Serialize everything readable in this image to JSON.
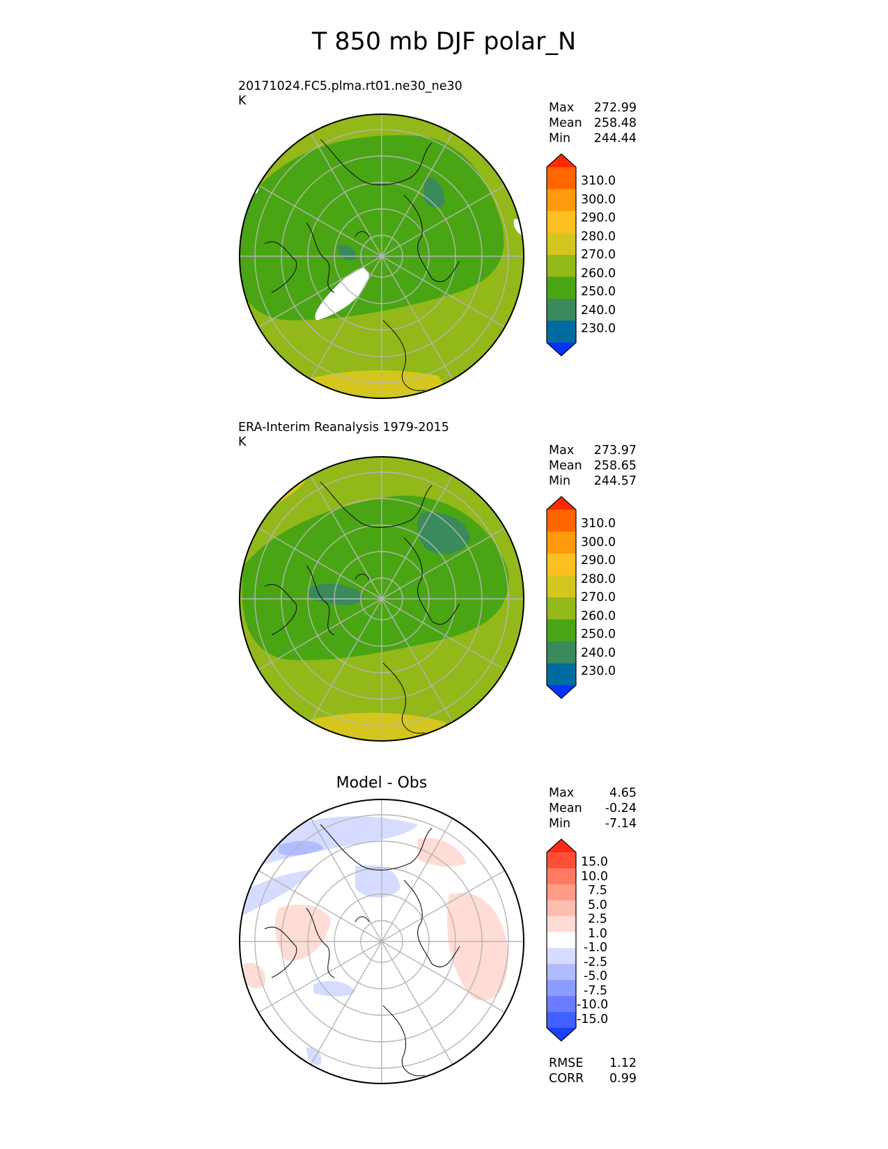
{
  "figure_title": "T 850 mb DJF polar_N",
  "panels": [
    {
      "id": "model",
      "title_line1": "20171024.FC5.plma.rt01.ne30_ne30",
      "title_line2": "K",
      "stats": [
        {
          "label": "Max",
          "value": "272.99"
        },
        {
          "label": "Mean",
          "value": "258.48"
        },
        {
          "label": "Min",
          "value": "244.44"
        }
      ]
    },
    {
      "id": "obs",
      "title_line1": "ERA-Interim Reanalysis 1979-2015",
      "title_line2": "K",
      "stats": [
        {
          "label": "Max",
          "value": "273.97"
        },
        {
          "label": "Mean",
          "value": "258.65"
        },
        {
          "label": "Min",
          "value": "244.57"
        }
      ]
    },
    {
      "id": "diff",
      "title_center": "Model - Obs",
      "stats": [
        {
          "label": "Max",
          "value": "4.65"
        },
        {
          "label": "Mean",
          "value": "-0.24"
        },
        {
          "label": "Min",
          "value": "-7.14"
        }
      ],
      "footer_stats": [
        {
          "label": "RMSE",
          "value": "1.12"
        },
        {
          "label": "CORR",
          "value": "0.99"
        }
      ]
    }
  ],
  "colorbar_temp": {
    "ticks": [
      "310.0",
      "300.0",
      "290.0",
      "280.0",
      "270.0",
      "260.0",
      "250.0",
      "240.0",
      "230.0"
    ],
    "colors": [
      "#ff2a00",
      "#ff6600",
      "#ff9a0f",
      "#fbbf22",
      "#d4c61e",
      "#93b81a",
      "#4aa514",
      "#3a8a5c",
      "#006c9f",
      "#0033ff"
    ]
  },
  "colorbar_diff": {
    "ticks": [
      "15.0",
      "10.0",
      "7.5",
      "5.0",
      "2.5",
      "1.0",
      "-1.0",
      "-2.5",
      "-5.0",
      "-7.5",
      "-10.0",
      "-15.0"
    ],
    "colors": [
      "#ff2a14",
      "#ff5037",
      "#ff7a62",
      "#ff9b86",
      "#ffbdae",
      "#ffdcd5",
      "#ffffff",
      "#d5dcff",
      "#b0bcff",
      "#8c9cff",
      "#6a7cff",
      "#4060ff",
      "#1b40ff"
    ]
  }
}
